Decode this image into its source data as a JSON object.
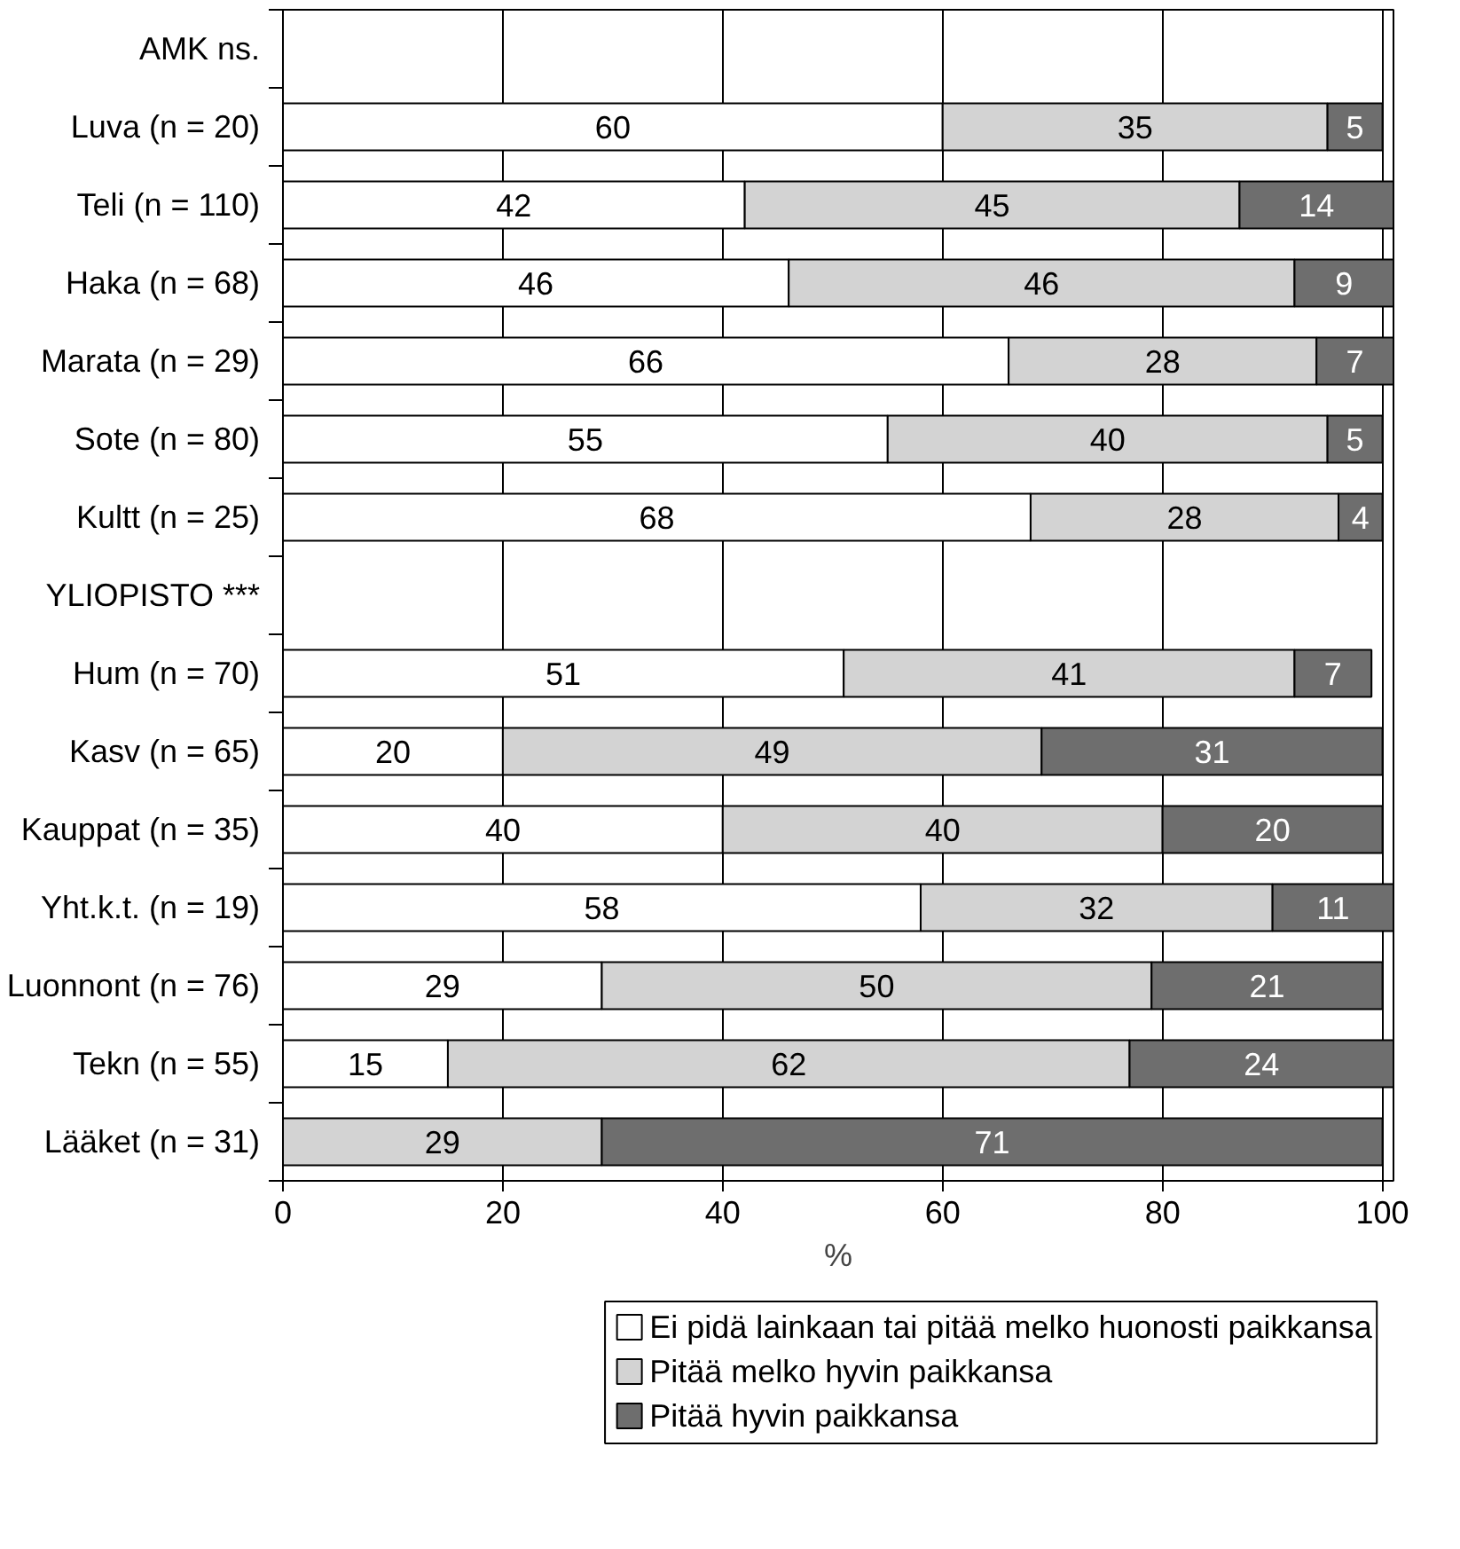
{
  "chart_data": {
    "type": "bar",
    "orientation": "horizontal",
    "stacked": true,
    "xlabel": "%",
    "categories": [
      "AMK ns.",
      "Luva (n = 20)",
      "Teli (n = 110)",
      "Haka (n = 68)",
      "Marata (n = 29)",
      "Sote (n = 80)",
      "Kultt (n = 25)",
      "YLIOPISTO ***",
      "Hum (n = 70)",
      "Kasv (n = 65)",
      "Kauppat (n = 35)",
      "Yht.k.t. (n = 19)",
      "Luonnont (n = 76)",
      "Tekn (n = 55)",
      "Lääket (n = 31)"
    ],
    "series": [
      {
        "name": "Ei pidä lainkaan tai pitää melko huonosti paikkansa",
        "color": "#ffffff",
        "values": [
          null,
          60,
          42,
          46,
          66,
          55,
          68,
          null,
          51,
          20,
          40,
          58,
          29,
          15,
          0
        ],
        "value_labels": [
          null,
          "60",
          "42",
          "46",
          "66",
          "55",
          "68",
          null,
          "51",
          "20",
          "40",
          "58",
          "29",
          "15",
          null
        ]
      },
      {
        "name": "Pitää melko hyvin paikkansa",
        "color": "#d3d3d3",
        "values": [
          null,
          35,
          45,
          46,
          28,
          40,
          28,
          null,
          41,
          49,
          40,
          32,
          50,
          62,
          29
        ],
        "value_labels": [
          null,
          "35",
          "45",
          "46",
          "28",
          "40",
          "28",
          null,
          "41",
          "49",
          "40",
          "32",
          "50",
          "62",
          "29"
        ]
      },
      {
        "name": "Pitää hyvin paikkansa",
        "color": "#6e6e6e",
        "values": [
          null,
          5,
          14,
          9,
          7,
          5,
          4,
          null,
          7,
          31,
          20,
          11,
          21,
          24,
          71
        ],
        "value_labels": [
          null,
          "5",
          "14",
          "9",
          "7",
          "5",
          "4",
          null,
          "7",
          "31",
          "20",
          "11",
          "21",
          "24",
          "71"
        ]
      }
    ],
    "xlim": [
      0,
      101
    ],
    "xticks": [
      0,
      20,
      40,
      60,
      80,
      100
    ],
    "grid": "x",
    "legend": "bottom"
  }
}
